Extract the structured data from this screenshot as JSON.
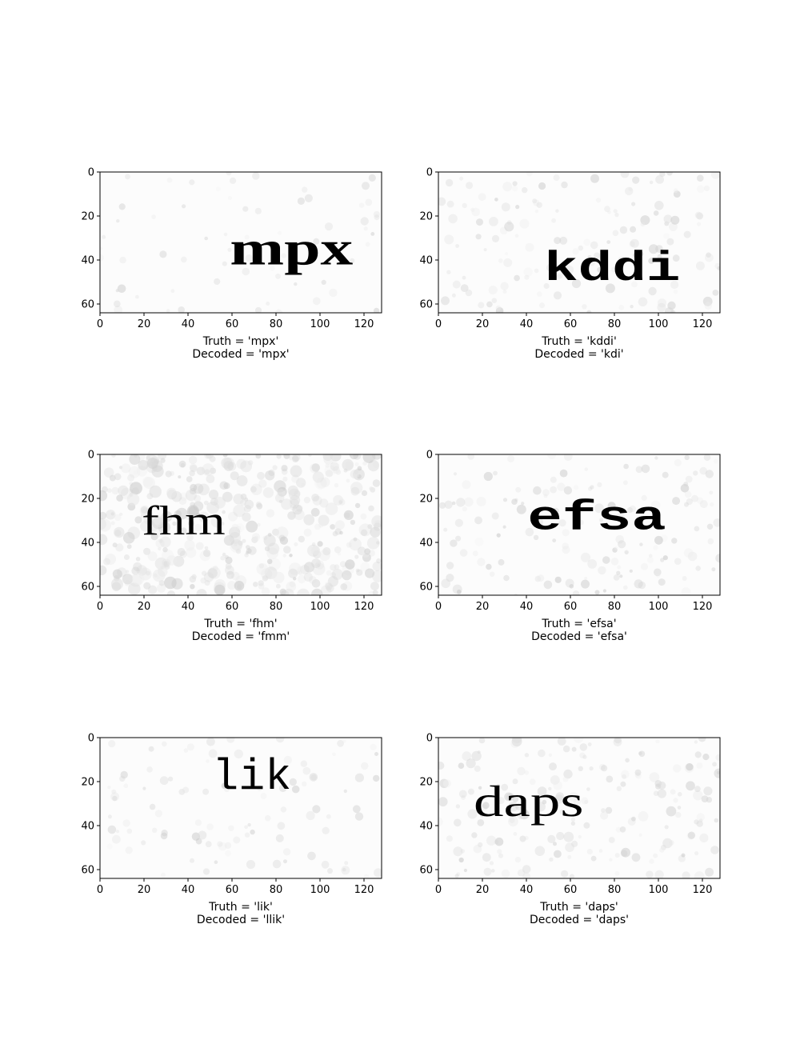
{
  "chart_data": [
    {
      "type": "image",
      "word": "mpx",
      "caption_truth": "Truth = 'mpx'",
      "caption_decoded": "Decoded = 'mpx'",
      "xlim": [
        0,
        128
      ],
      "ylim": [
        64,
        0
      ],
      "xticks": [
        0,
        20,
        40,
        60,
        80,
        100,
        120
      ],
      "yticks": [
        0,
        20,
        40,
        60
      ],
      "word_anchor": [
        87,
        37
      ],
      "word_width": 56,
      "word_size": 22,
      "font": "serif",
      "bold": true,
      "ink": "#1a1a1a",
      "noise": 0.25
    },
    {
      "type": "image",
      "word": "kddi",
      "caption_truth": "Truth = 'kddi'",
      "caption_decoded": "Decoded = 'kdi'",
      "xlim": [
        0,
        128
      ],
      "ylim": [
        64,
        0
      ],
      "xticks": [
        0,
        20,
        40,
        60,
        80,
        100,
        120
      ],
      "yticks": [
        0,
        20,
        40,
        60
      ],
      "word_anchor": [
        79,
        44
      ],
      "word_width": 62,
      "word_size": 19,
      "font": "mono",
      "bold": true,
      "ink": "#111111",
      "noise": 0.6
    },
    {
      "type": "image",
      "word": "fhm",
      "caption_truth": "Truth = 'fhm'",
      "caption_decoded": "Decoded = 'fmm'",
      "xlim": [
        0,
        128
      ],
      "ylim": [
        64,
        0
      ],
      "xticks": [
        0,
        20,
        40,
        60,
        80,
        100,
        120
      ],
      "yticks": [
        0,
        20,
        40,
        60
      ],
      "word_anchor": [
        38,
        32
      ],
      "word_width": 38,
      "word_size": 19,
      "font": "serif",
      "bold": false,
      "ink": "#2a2a2a",
      "noise": 1.8
    },
    {
      "type": "image",
      "word": "efsa",
      "caption_truth": "Truth = 'efsa'",
      "caption_decoded": "Decoded = 'efsa'",
      "xlim": [
        0,
        128
      ],
      "ylim": [
        64,
        0
      ],
      "xticks": [
        0,
        20,
        40,
        60,
        80,
        100,
        120
      ],
      "yticks": [
        0,
        20,
        40,
        60
      ],
      "word_anchor": [
        72,
        29
      ],
      "word_width": 63,
      "word_size": 19,
      "font": "mono",
      "bold": true,
      "ink": "#111111",
      "noise": 0.6
    },
    {
      "type": "image",
      "word": "lik",
      "caption_truth": "Truth = 'lik'",
      "caption_decoded": "Decoded = 'llik'",
      "xlim": [
        0,
        128
      ],
      "ylim": [
        64,
        0
      ],
      "xticks": [
        0,
        20,
        40,
        60,
        80,
        100,
        120
      ],
      "yticks": [
        0,
        20,
        40,
        60
      ],
      "word_anchor": [
        69,
        18
      ],
      "word_width": 36,
      "word_size": 20,
      "font": "mono",
      "bold": false,
      "ink": "#2a2a2a",
      "noise": 0.4
    },
    {
      "type": "image",
      "word": "daps",
      "caption_truth": "Truth = 'daps'",
      "caption_decoded": "Decoded = 'daps'",
      "xlim": [
        0,
        128
      ],
      "ylim": [
        64,
        0
      ],
      "xticks": [
        0,
        20,
        40,
        60,
        80,
        100,
        120
      ],
      "yticks": [
        0,
        20,
        40,
        60
      ],
      "word_anchor": [
        41,
        31
      ],
      "word_width": 50,
      "word_size": 20,
      "font": "serif",
      "bold": false,
      "ink": "#3a3a3a",
      "noise": 0.8
    }
  ]
}
